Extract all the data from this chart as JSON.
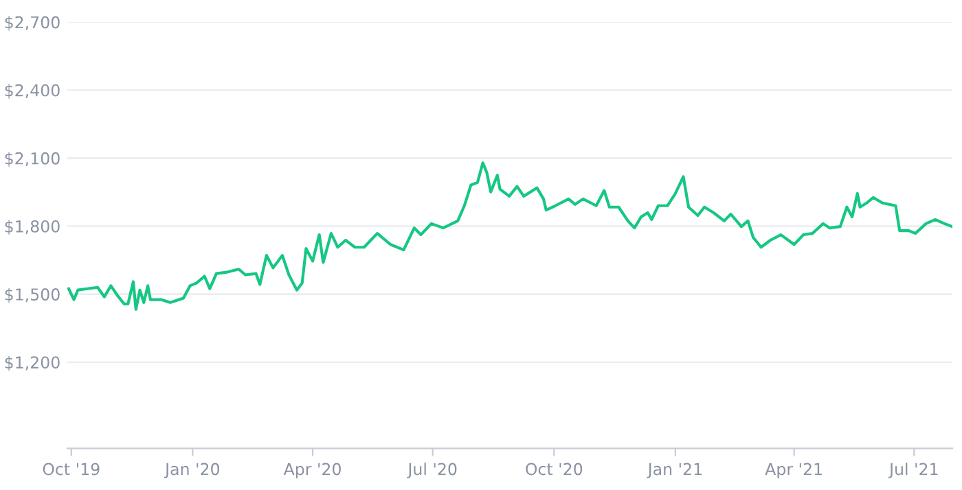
{
  "chart_data": {
    "type": "line",
    "color": "#16c784",
    "grid": "y",
    "legend": false,
    "marker": "none",
    "line_style": "solid",
    "x": [
      "2019-09-29",
      "2019-10-03",
      "2019-10-06",
      "2019-10-13",
      "2019-10-21",
      "2019-10-26",
      "2019-10-31",
      "2019-11-05",
      "2019-11-10",
      "2019-11-13",
      "2019-11-17",
      "2019-11-19",
      "2019-11-22",
      "2019-11-25",
      "2019-11-28",
      "2019-11-30",
      "2019-12-08",
      "2019-12-15",
      "2019-12-25",
      "2019-12-30",
      "2020-01-04",
      "2020-01-10",
      "2020-01-14",
      "2020-01-19",
      "2020-01-27",
      "2020-02-05",
      "2020-02-10",
      "2020-02-18",
      "2020-02-21",
      "2020-02-26",
      "2020-03-02",
      "2020-03-09",
      "2020-03-14",
      "2020-03-20",
      "2020-03-24",
      "2020-03-27",
      "2020-04-01",
      "2020-04-06",
      "2020-04-09",
      "2020-04-15",
      "2020-04-20",
      "2020-04-26",
      "2020-05-03",
      "2020-05-10",
      "2020-05-20",
      "2020-05-30",
      "2020-06-09",
      "2020-06-17",
      "2020-06-22",
      "2020-06-30",
      "2020-07-09",
      "2020-07-20",
      "2020-07-25",
      "2020-07-30",
      "2020-08-04",
      "2020-08-08",
      "2020-08-11",
      "2020-08-14",
      "2020-08-19",
      "2020-08-21",
      "2020-08-28",
      "2020-09-03",
      "2020-09-08",
      "2020-09-18",
      "2020-09-23",
      "2020-09-25",
      "2020-10-02",
      "2020-10-12",
      "2020-10-17",
      "2020-10-23",
      "2020-11-02",
      "2020-11-08",
      "2020-11-12",
      "2020-11-19",
      "2020-11-26",
      "2020-12-01",
      "2020-12-06",
      "2020-12-11",
      "2020-12-14",
      "2020-12-19",
      "2020-12-26",
      "2021-01-01",
      "2021-01-07",
      "2021-01-11",
      "2021-01-18",
      "2021-01-23",
      "2021-01-30",
      "2021-02-07",
      "2021-02-12",
      "2021-02-20",
      "2021-02-25",
      "2021-03-01",
      "2021-03-07",
      "2021-03-14",
      "2021-03-22",
      "2021-04-01",
      "2021-04-08",
      "2021-04-15",
      "2021-04-23",
      "2021-04-28",
      "2021-05-06",
      "2021-05-11",
      "2021-05-15",
      "2021-05-19",
      "2021-05-21",
      "2021-05-26",
      "2021-05-31",
      "2021-06-07",
      "2021-06-17",
      "2021-06-20",
      "2021-06-27",
      "2021-07-02",
      "2021-07-10",
      "2021-07-17",
      "2021-07-24",
      "2021-07-30"
    ],
    "values": [
      1524,
      1476,
      1518,
      1524,
      1530,
      1488,
      1537,
      1494,
      1457,
      1457,
      1555,
      1433,
      1518,
      1463,
      1537,
      1476,
      1476,
      1463,
      1482,
      1537,
      1549,
      1579,
      1524,
      1591,
      1597,
      1610,
      1585,
      1591,
      1543,
      1671,
      1616,
      1671,
      1585,
      1518,
      1549,
      1701,
      1646,
      1762,
      1640,
      1768,
      1707,
      1738,
      1707,
      1707,
      1768,
      1719,
      1695,
      1792,
      1762,
      1811,
      1792,
      1823,
      1890,
      1981,
      1993,
      2079,
      2036,
      1951,
      2024,
      1963,
      1932,
      1975,
      1932,
      1969,
      1920,
      1871,
      1890,
      1920,
      1896,
      1920,
      1890,
      1957,
      1884,
      1884,
      1823,
      1792,
      1841,
      1859,
      1829,
      1890,
      1890,
      1944,
      2018,
      1884,
      1847,
      1884,
      1859,
      1823,
      1853,
      1798,
      1823,
      1750,
      1707,
      1738,
      1762,
      1719,
      1762,
      1768,
      1811,
      1792,
      1798,
      1884,
      1841,
      1944,
      1884,
      1902,
      1926,
      1902,
      1890,
      1780,
      1780,
      1768,
      1811,
      1829,
      1811,
      1798
    ],
    "xlim": [
      "2019-09-28",
      "2021-07-30"
    ],
    "xticks": [
      {
        "value": "2019-10-01",
        "label": "Oct '19"
      },
      {
        "value": "2020-01-01",
        "label": "Jan '20"
      },
      {
        "value": "2020-04-01",
        "label": "Apr '20"
      },
      {
        "value": "2020-07-01",
        "label": "Jul '20"
      },
      {
        "value": "2020-10-01",
        "label": "Oct '20"
      },
      {
        "value": "2021-01-01",
        "label": "Jan '21"
      },
      {
        "value": "2021-04-01",
        "label": "Apr '21"
      },
      {
        "value": "2021-07-01",
        "label": "Jul '21"
      }
    ],
    "ylim": [
      820,
      2700
    ],
    "yticks": [
      {
        "value": 1200,
        "label": "$1,200"
      },
      {
        "value": 1500,
        "label": "$1,500"
      },
      {
        "value": 1800,
        "label": "$1,800"
      },
      {
        "value": 2100,
        "label": "$2,100"
      },
      {
        "value": 2400,
        "label": "$2,400"
      },
      {
        "value": 2700,
        "label": "$2,700"
      }
    ]
  }
}
